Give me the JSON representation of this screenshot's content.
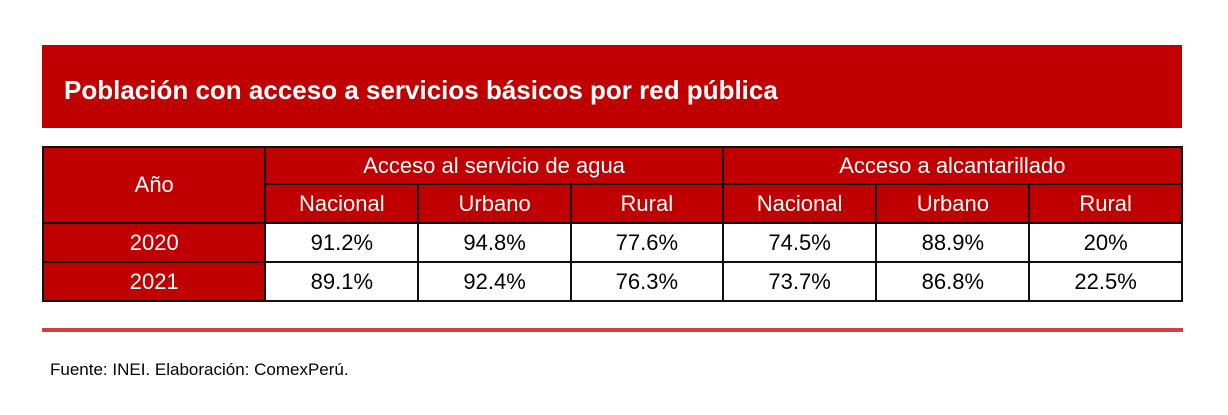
{
  "title": "Población con acceso a servicios básicos por red pública",
  "table": {
    "year_header": "Año",
    "groups": [
      "Acceso al servicio de agua",
      "Acceso a alcantarillado"
    ],
    "subheaders": [
      "Nacional",
      "Urbano",
      "Rural",
      "Nacional",
      "Urbano",
      "Rural"
    ],
    "rows": [
      {
        "year": "2020",
        "values": [
          "91.2%",
          "94.8%",
          "77.6%",
          "74.5%",
          "88.9%",
          "20%"
        ]
      },
      {
        "year": "2021",
        "values": [
          "89.1%",
          "92.4%",
          "76.3%",
          "73.7%",
          "86.8%",
          "22.5%"
        ]
      }
    ]
  },
  "source": "Fuente: INEI. Elaboración: ComexPerú.",
  "colors": {
    "header_red": "#c00000",
    "rule_red": "#d04040"
  }
}
